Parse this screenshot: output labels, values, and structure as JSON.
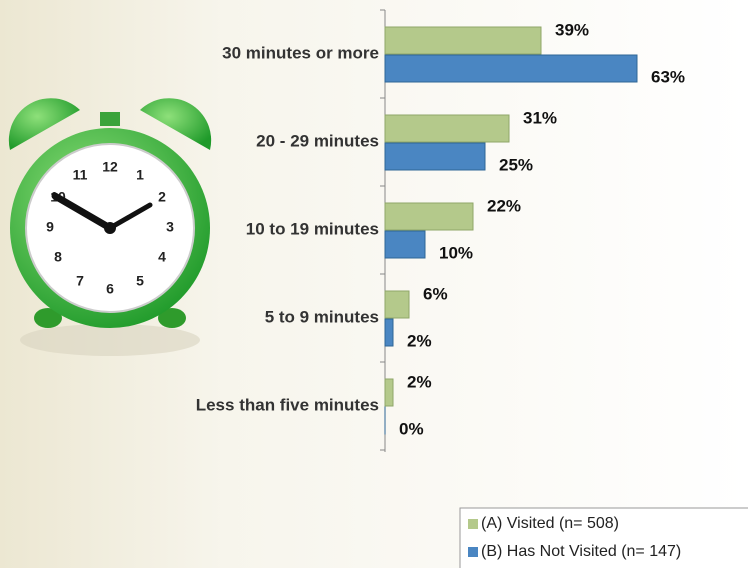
{
  "chart_data": {
    "type": "hbar",
    "categories": [
      "30 minutes or more",
      "20 - 29 minutes",
      "10 to 19 minutes",
      "5 to 9 minutes",
      "Less than five minutes"
    ],
    "series": [
      {
        "name": "(A) Visited (n= 508)",
        "color": "#b4c98b",
        "values": [
          39,
          31,
          22,
          6,
          2
        ],
        "value_labels": [
          "39%",
          "31%",
          "22%",
          "6%",
          "2%"
        ]
      },
      {
        "name": "(B) Has Not Visited (n= 147)",
        "color": "#4a86c2",
        "values": [
          63,
          25,
          10,
          2,
          0
        ],
        "value_labels": [
          "63%",
          "25%",
          "10%",
          "2%",
          "0%"
        ]
      }
    ],
    "xlim": [
      0,
      90
    ],
    "legend": "lower right"
  }
}
